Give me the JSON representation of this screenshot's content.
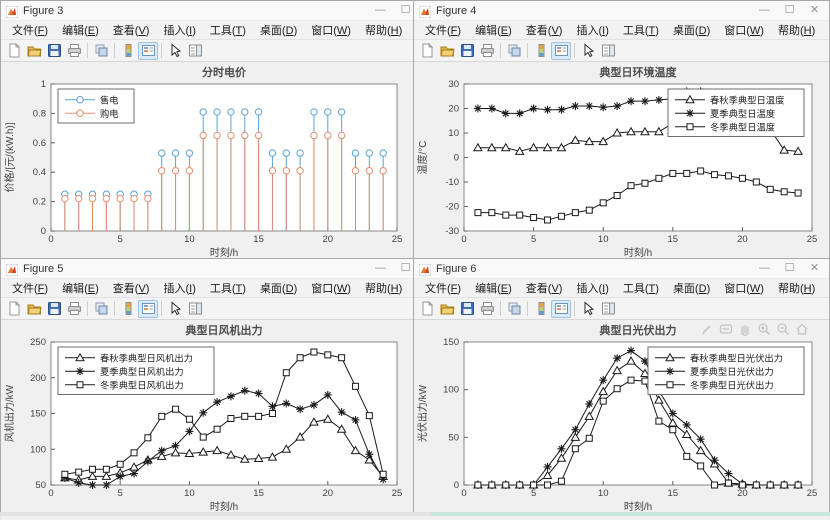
{
  "chrome": {
    "menu": [
      "文件(F)",
      "编辑(E)",
      "查看(V)",
      "插入(I)",
      "工具(T)",
      "桌面(D)",
      "窗口(W)",
      "帮助(H)"
    ],
    "menu_names": [
      "file",
      "edit",
      "view",
      "insert",
      "tools",
      "desktop",
      "window",
      "help"
    ],
    "toolbar_icons": [
      "new-figure-icon",
      "open-file-icon",
      "save-figure-icon",
      "print-figure-icon",
      "link-plot-icon",
      "colorbar-icon",
      "insert-legend-icon",
      "edit-plot-icon",
      "property-inspector-icon"
    ],
    "toolbar_active_icon": "insert-legend-icon",
    "axes_toolbar_icons": [
      "brush-icon",
      "datatip-icon",
      "pan-icon",
      "zoom-in-icon",
      "zoom-out-icon",
      "restore-view-icon"
    ],
    "window_buttons": {
      "minimize": "—",
      "maximize": "☐",
      "close": "✕"
    }
  },
  "windows": [
    {
      "title": "Figure 3"
    },
    {
      "title": "Figure 4"
    },
    {
      "title": "Figure 5"
    },
    {
      "title": "Figure 6"
    }
  ],
  "chart_data": [
    {
      "type": "stem",
      "title": "分时电价",
      "xlabel": "时刻/h",
      "ylabel": "价格/[元/(kW.h)]",
      "xlim": [
        0,
        25
      ],
      "ylim": [
        0,
        1
      ],
      "xticks": [
        0,
        5,
        10,
        15,
        20,
        25
      ],
      "yticks": [
        0,
        0.2,
        0.4,
        0.6,
        0.8,
        1
      ],
      "legend_position": "top-left",
      "grid": false,
      "x": [
        1,
        2,
        3,
        4,
        5,
        6,
        7,
        8,
        9,
        10,
        11,
        12,
        13,
        14,
        15,
        16,
        17,
        18,
        19,
        20,
        21,
        22,
        23,
        24
      ],
      "series": [
        {
          "name": "售电",
          "marker": "circle",
          "color": "#5BA3D4",
          "values": [
            0.25,
            0.25,
            0.25,
            0.25,
            0.25,
            0.25,
            0.25,
            0.53,
            0.53,
            0.53,
            0.81,
            0.81,
            0.81,
            0.81,
            0.81,
            0.53,
            0.53,
            0.53,
            0.81,
            0.81,
            0.81,
            0.53,
            0.53,
            0.53
          ]
        },
        {
          "name": "购电",
          "marker": "circle",
          "color": "#E2906F",
          "values": [
            0.22,
            0.22,
            0.22,
            0.22,
            0.22,
            0.22,
            0.22,
            0.41,
            0.41,
            0.41,
            0.65,
            0.65,
            0.65,
            0.65,
            0.65,
            0.41,
            0.41,
            0.41,
            0.65,
            0.65,
            0.65,
            0.41,
            0.41,
            0.41
          ]
        }
      ]
    },
    {
      "type": "line",
      "title": "典型日环境温度",
      "xlabel": "时刻/h",
      "ylabel": "温度/°C",
      "xlim": [
        0,
        25
      ],
      "ylim": [
        -30,
        30
      ],
      "xticks": [
        0,
        5,
        10,
        15,
        20,
        25
      ],
      "yticks": [
        -30,
        -20,
        -10,
        0,
        10,
        20,
        30
      ],
      "legend_position": "top-right",
      "grid": false,
      "x": [
        1,
        2,
        3,
        4,
        5,
        6,
        7,
        8,
        9,
        10,
        11,
        12,
        13,
        14,
        15,
        16,
        17,
        18,
        19,
        20,
        21,
        22,
        23,
        24
      ],
      "series": [
        {
          "name": "春秋季典型日温度",
          "marker": "triangle",
          "color": "#1a1a1a",
          "values": [
            4,
            4,
            4,
            2.5,
            4,
            4,
            4,
            7,
            6.5,
            6.5,
            10,
            10.5,
            10.5,
            10.5,
            14,
            14,
            15.5,
            15.5,
            14,
            12.5,
            12.5,
            11.5,
            3,
            2.5
          ]
        },
        {
          "name": "夏季典型日温度",
          "marker": "asterisk",
          "color": "#1a1a1a",
          "values": [
            20,
            20,
            18,
            18,
            20,
            19.5,
            19.5,
            21,
            21,
            20.5,
            21,
            23,
            23,
            23.5,
            24,
            27,
            27,
            26.5,
            26.5,
            26,
            25.5,
            25,
            24.5,
            24
          ]
        },
        {
          "name": "冬季典型日温度",
          "marker": "square",
          "color": "#1a1a1a",
          "values": [
            -22.5,
            -22.5,
            -23.5,
            -23.5,
            -24.5,
            -25.5,
            -24,
            -22.5,
            -21.5,
            -18.5,
            -15.5,
            -11.5,
            -10.5,
            -8.5,
            -6.5,
            -6.5,
            -5.5,
            -7,
            -7.5,
            -8.5,
            -10,
            -13,
            -14,
            -14.5
          ]
        }
      ]
    },
    {
      "type": "line",
      "title": "典型日风机出力",
      "xlabel": "时刻/h",
      "ylabel": "风机出力/kW",
      "xlim": [
        0,
        25
      ],
      "ylim": [
        50,
        250
      ],
      "xticks": [
        0,
        5,
        10,
        15,
        20,
        25
      ],
      "yticks": [
        50,
        100,
        150,
        200,
        250
      ],
      "legend_position": "top-left",
      "grid": false,
      "x": [
        1,
        2,
        3,
        4,
        5,
        6,
        7,
        8,
        9,
        10,
        11,
        12,
        13,
        14,
        15,
        16,
        17,
        18,
        19,
        20,
        21,
        22,
        23,
        24
      ],
      "series": [
        {
          "name": "春秋季典型日风机出力",
          "marker": "triangle",
          "color": "#1a1a1a",
          "values": [
            60,
            57,
            62,
            62,
            67,
            75,
            85,
            90,
            95,
            94,
            96,
            98,
            92,
            86,
            87,
            89,
            100,
            117,
            138,
            142,
            128,
            98,
            85,
            62
          ]
        },
        {
          "name": "夏季典型日风机出力",
          "marker": "asterisk",
          "color": "#1a1a1a",
          "values": [
            60,
            53,
            50,
            50,
            62,
            66,
            83,
            98,
            105,
            125,
            151,
            166,
            174,
            182,
            178,
            160,
            164,
            156,
            162,
            176,
            152,
            141,
            93,
            58
          ]
        },
        {
          "name": "冬季典型日风机出力",
          "marker": "square",
          "color": "#1a1a1a",
          "values": [
            65,
            68,
            72,
            72,
            79,
            95,
            116,
            146,
            156,
            142,
            117,
            128,
            143,
            146,
            146,
            150,
            207,
            228,
            236,
            232,
            228,
            188,
            147,
            65
          ]
        }
      ]
    },
    {
      "type": "line",
      "title": "典型日光伏出力",
      "xlabel": "时刻/h",
      "ylabel": "光伏出力/kW",
      "xlim": [
        0,
        25
      ],
      "ylim": [
        0,
        150
      ],
      "xticks": [
        0,
        5,
        10,
        15,
        20,
        25
      ],
      "yticks": [
        0,
        50,
        100,
        150
      ],
      "legend_position": "top-right",
      "grid": false,
      "x": [
        1,
        2,
        3,
        4,
        5,
        6,
        7,
        8,
        9,
        10,
        11,
        12,
        13,
        14,
        15,
        16,
        17,
        18,
        19,
        20,
        21,
        22,
        23,
        24
      ],
      "series": [
        {
          "name": "春秋季典型日光伏出力",
          "marker": "triangle",
          "color": "#1a1a1a",
          "values": [
            0,
            0,
            0,
            0,
            0,
            10,
            28,
            50,
            72,
            98,
            120,
            130,
            117,
            89,
            65,
            53,
            36,
            22,
            2,
            1,
            0,
            0,
            0,
            0
          ]
        },
        {
          "name": "夏季典型日光伏出力",
          "marker": "asterisk",
          "color": "#1a1a1a",
          "values": [
            0,
            0,
            0,
            0,
            0,
            19,
            38,
            58,
            85,
            110,
            133,
            141,
            130,
            99,
            75,
            63,
            48,
            26,
            12,
            1,
            0,
            0,
            0,
            0
          ]
        },
        {
          "name": "冬季典型日光伏出力",
          "marker": "square",
          "color": "#1a1a1a",
          "values": [
            0,
            0,
            0,
            0,
            0,
            0,
            4,
            38,
            49,
            88,
            101,
            110,
            109,
            67,
            58,
            30,
            20,
            0,
            2,
            0,
            0,
            0,
            0,
            0
          ]
        }
      ]
    }
  ]
}
